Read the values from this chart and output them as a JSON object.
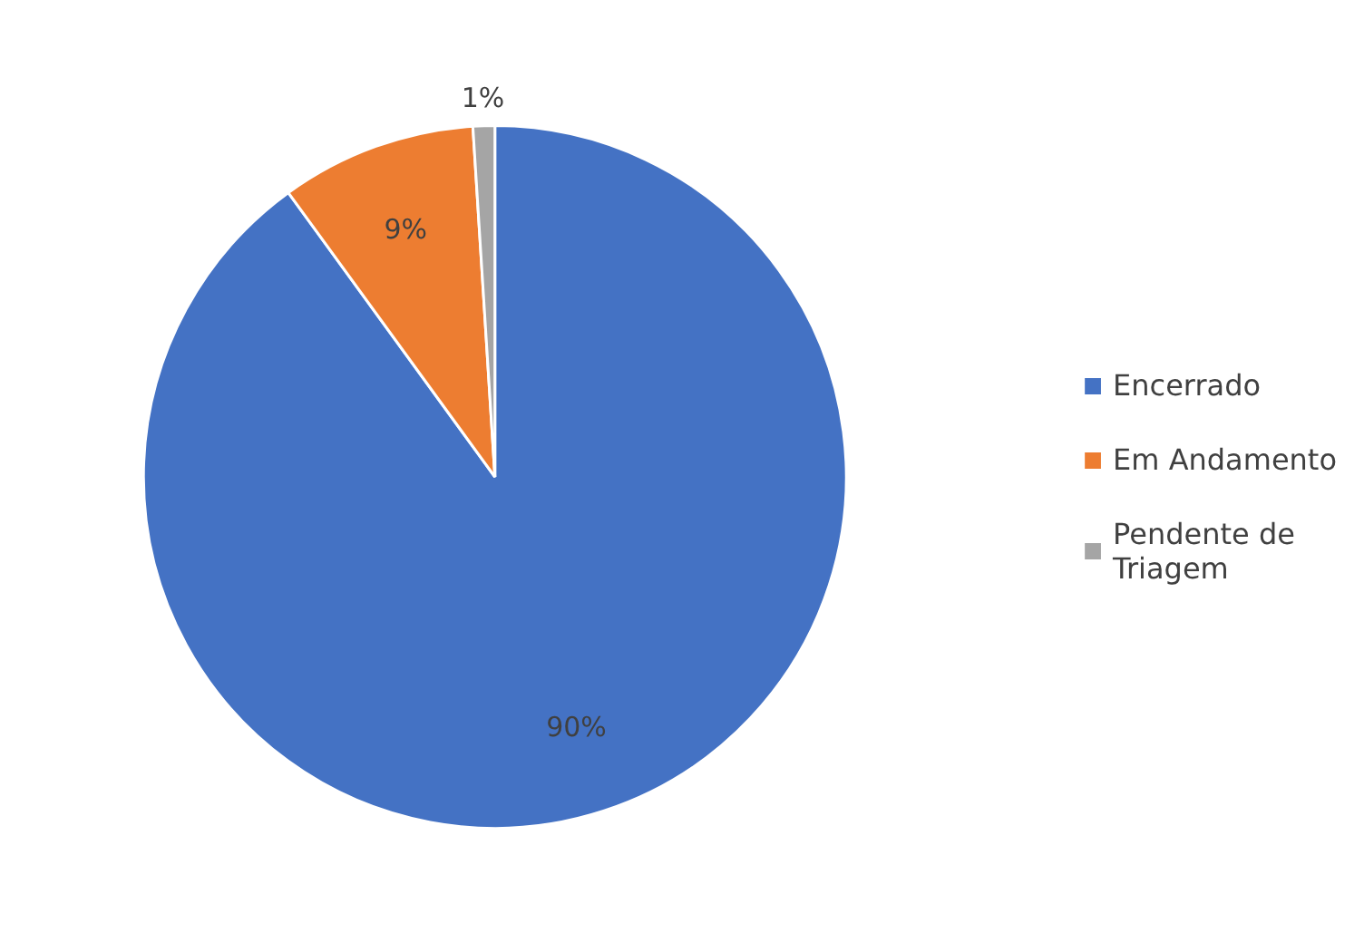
{
  "chart_data": {
    "type": "pie",
    "categories": [
      "Encerrado",
      "Em Andamento",
      "Pendente de Triagem"
    ],
    "values": [
      90,
      9,
      1
    ],
    "colors": [
      "#4472c4",
      "#ed7d31",
      "#a5a5a5"
    ],
    "data_labels": true,
    "value_labels": [
      "90%",
      "9%",
      "1%"
    ],
    "legend": "right"
  }
}
